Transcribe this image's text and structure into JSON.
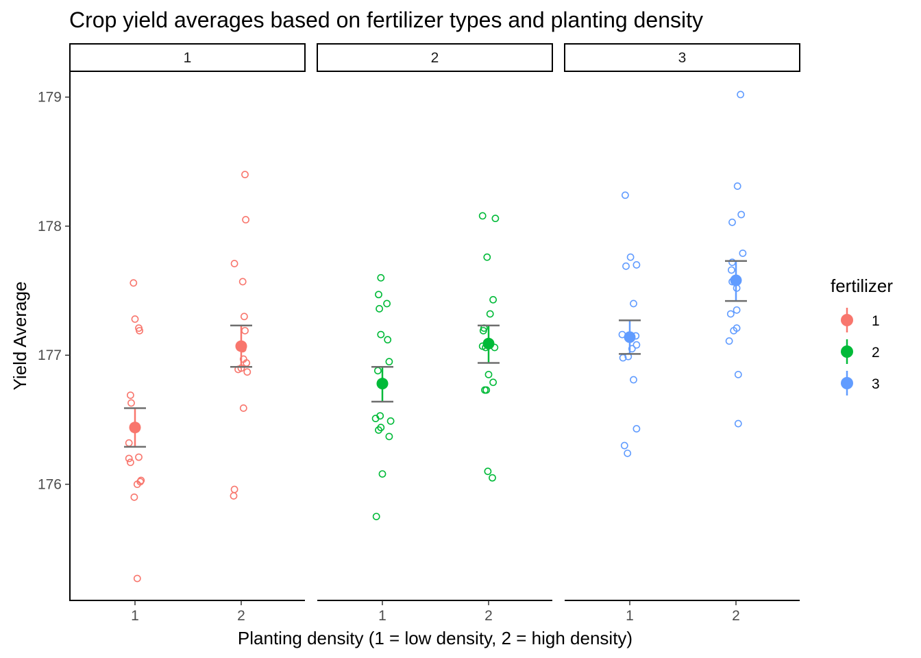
{
  "chart_data": {
    "type": "scatter",
    "title": "Crop yield averages based on fertilizer types and planting density",
    "xlabel": "Planting density (1 = low density, 2 = high density)",
    "ylabel": "Yield Average",
    "x_categories": [
      "1",
      "2"
    ],
    "facets": [
      "1",
      "2",
      "3"
    ],
    "ylim": [
      175.1,
      179.2
    ],
    "yticks": [
      176,
      177,
      178,
      179
    ],
    "grid": false,
    "legend": {
      "title": "fertilizer",
      "placement": "right",
      "items": [
        {
          "label": "1",
          "color": "#F8766D"
        },
        {
          "label": "2",
          "color": "#00BA38"
        },
        {
          "label": "3",
          "color": "#619CFF"
        }
      ]
    },
    "series": [
      {
        "fertilizer": "1",
        "color": "#F8766D",
        "groups": [
          {
            "density": "1",
            "mean": 176.44,
            "ci_low": 176.29,
            "ci_high": 176.59,
            "points": [
              {
                "dx": -0.02,
                "y": 177.56
              },
              {
                "dx": 0.0,
                "y": 177.28
              },
              {
                "dx": 0.05,
                "y": 177.21
              },
              {
                "dx": 0.06,
                "y": 177.19
              },
              {
                "dx": -0.06,
                "y": 176.69
              },
              {
                "dx": -0.05,
                "y": 176.63
              },
              {
                "dx": 0.01,
                "y": 176.44
              },
              {
                "dx": 0.02,
                "y": 176.43
              },
              {
                "dx": -0.08,
                "y": 176.32
              },
              {
                "dx": 0.05,
                "y": 176.21
              },
              {
                "dx": -0.08,
                "y": 176.2
              },
              {
                "dx": -0.06,
                "y": 176.17
              },
              {
                "dx": 0.07,
                "y": 176.02
              },
              {
                "dx": 0.08,
                "y": 176.03
              },
              {
                "dx": 0.03,
                "y": 176.0
              },
              {
                "dx": -0.01,
                "y": 175.9
              },
              {
                "dx": 0.03,
                "y": 175.27
              }
            ]
          },
          {
            "density": "2",
            "mean": 177.07,
            "ci_low": 176.91,
            "ci_high": 177.23,
            "points": [
              {
                "dx": 0.05,
                "y": 178.4
              },
              {
                "dx": 0.06,
                "y": 178.05
              },
              {
                "dx": -0.09,
                "y": 177.71
              },
              {
                "dx": 0.02,
                "y": 177.57
              },
              {
                "dx": 0.04,
                "y": 177.3
              },
              {
                "dx": 0.05,
                "y": 177.19
              },
              {
                "dx": 0.01,
                "y": 177.07
              },
              {
                "dx": 0.02,
                "y": 177.05
              },
              {
                "dx": 0.03,
                "y": 176.97
              },
              {
                "dx": 0.07,
                "y": 176.94
              },
              {
                "dx": -0.04,
                "y": 176.89
              },
              {
                "dx": 0.0,
                "y": 176.9
              },
              {
                "dx": 0.08,
                "y": 176.87
              },
              {
                "dx": 0.03,
                "y": 176.59
              },
              {
                "dx": -0.09,
                "y": 175.96
              },
              {
                "dx": -0.1,
                "y": 175.91
              }
            ]
          }
        ]
      },
      {
        "fertilizer": "2",
        "color": "#00BA38",
        "groups": [
          {
            "density": "1",
            "mean": 176.78,
            "ci_low": 176.64,
            "ci_high": 176.91,
            "points": [
              {
                "dx": -0.02,
                "y": 177.6
              },
              {
                "dx": -0.05,
                "y": 177.47
              },
              {
                "dx": 0.06,
                "y": 177.4
              },
              {
                "dx": -0.04,
                "y": 177.36
              },
              {
                "dx": -0.02,
                "y": 177.16
              },
              {
                "dx": 0.07,
                "y": 177.12
              },
              {
                "dx": 0.09,
                "y": 176.95
              },
              {
                "dx": -0.06,
                "y": 176.88
              },
              {
                "dx": -0.03,
                "y": 176.53
              },
              {
                "dx": -0.09,
                "y": 176.51
              },
              {
                "dx": 0.11,
                "y": 176.49
              },
              {
                "dx": -0.02,
                "y": 176.44
              },
              {
                "dx": -0.05,
                "y": 176.42
              },
              {
                "dx": 0.09,
                "y": 176.37
              },
              {
                "dx": 0.0,
                "y": 176.08
              },
              {
                "dx": -0.08,
                "y": 175.75
              }
            ]
          },
          {
            "density": "2",
            "mean": 177.09,
            "ci_low": 176.94,
            "ci_high": 177.23,
            "points": [
              {
                "dx": -0.08,
                "y": 178.08
              },
              {
                "dx": 0.09,
                "y": 178.06
              },
              {
                "dx": -0.02,
                "y": 177.76
              },
              {
                "dx": 0.06,
                "y": 177.43
              },
              {
                "dx": 0.02,
                "y": 177.32
              },
              {
                "dx": -0.06,
                "y": 177.21
              },
              {
                "dx": -0.07,
                "y": 177.19
              },
              {
                "dx": -0.08,
                "y": 177.07
              },
              {
                "dx": 0.08,
                "y": 177.06
              },
              {
                "dx": -0.04,
                "y": 177.06
              },
              {
                "dx": 0.0,
                "y": 176.85
              },
              {
                "dx": 0.06,
                "y": 176.79
              },
              {
                "dx": -0.05,
                "y": 176.73
              },
              {
                "dx": -0.03,
                "y": 176.73
              },
              {
                "dx": -0.01,
                "y": 176.1
              },
              {
                "dx": 0.05,
                "y": 176.05
              }
            ]
          }
        ]
      },
      {
        "fertilizer": "3",
        "color": "#619CFF",
        "groups": [
          {
            "density": "1",
            "mean": 177.14,
            "ci_low": 177.01,
            "ci_high": 177.27,
            "points": [
              {
                "dx": -0.06,
                "y": 178.24
              },
              {
                "dx": 0.01,
                "y": 177.76
              },
              {
                "dx": 0.09,
                "y": 177.7
              },
              {
                "dx": -0.05,
                "y": 177.69
              },
              {
                "dx": 0.05,
                "y": 177.4
              },
              {
                "dx": -0.1,
                "y": 177.16
              },
              {
                "dx": 0.08,
                "y": 177.15
              },
              {
                "dx": 0.09,
                "y": 177.08
              },
              {
                "dx": 0.03,
                "y": 177.05
              },
              {
                "dx": -0.09,
                "y": 176.98
              },
              {
                "dx": -0.02,
                "y": 176.99
              },
              {
                "dx": 0.05,
                "y": 176.81
              },
              {
                "dx": 0.09,
                "y": 176.43
              },
              {
                "dx": -0.07,
                "y": 176.3
              },
              {
                "dx": -0.03,
                "y": 176.24
              }
            ]
          },
          {
            "density": "2",
            "mean": 177.58,
            "ci_low": 177.42,
            "ci_high": 177.73,
            "points": [
              {
                "dx": 0.06,
                "y": 179.02
              },
              {
                "dx": 0.02,
                "y": 178.31
              },
              {
                "dx": 0.07,
                "y": 178.09
              },
              {
                "dx": -0.05,
                "y": 178.03
              },
              {
                "dx": 0.09,
                "y": 177.79
              },
              {
                "dx": -0.05,
                "y": 177.72
              },
              {
                "dx": -0.06,
                "y": 177.66
              },
              {
                "dx": -0.05,
                "y": 177.57
              },
              {
                "dx": 0.01,
                "y": 177.52
              },
              {
                "dx": 0.01,
                "y": 177.35
              },
              {
                "dx": -0.07,
                "y": 177.32
              },
              {
                "dx": 0.01,
                "y": 177.21
              },
              {
                "dx": -0.03,
                "y": 177.19
              },
              {
                "dx": -0.09,
                "y": 177.11
              },
              {
                "dx": 0.03,
                "y": 176.85
              },
              {
                "dx": 0.03,
                "y": 176.47
              }
            ]
          }
        ]
      }
    ]
  }
}
